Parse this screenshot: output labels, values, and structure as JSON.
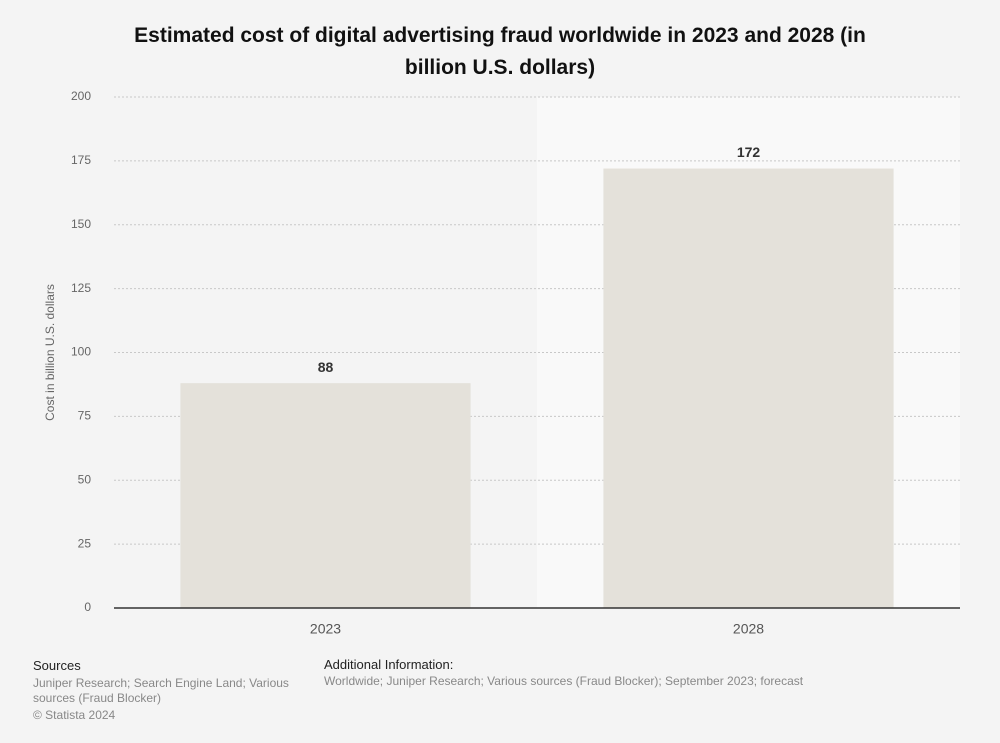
{
  "chart_data": {
    "type": "bar",
    "title": "Estimated cost of digital advertising fraud worldwide in 2023 and 2028 (in billion U.S. dollars)",
    "ylabel": "Cost in billion U.S. dollars",
    "categories": [
      "2023",
      "2028"
    ],
    "values": [
      88,
      172
    ],
    "color": "#e4e1da",
    "ylim": [
      0,
      200
    ],
    "yticks": [
      0,
      25,
      50,
      75,
      100,
      125,
      150,
      175,
      200
    ],
    "grid": true
  },
  "footer": {
    "sources_title": "Sources",
    "sources": "Juniper Research; Search Engine Land; Various sources (Fraud Blocker)",
    "copyright": "© Statista 2024",
    "additional_title": "Additional Information:",
    "additional": "Worldwide; Juniper Research; Various sources (Fraud Blocker); September 2023; forecast"
  }
}
